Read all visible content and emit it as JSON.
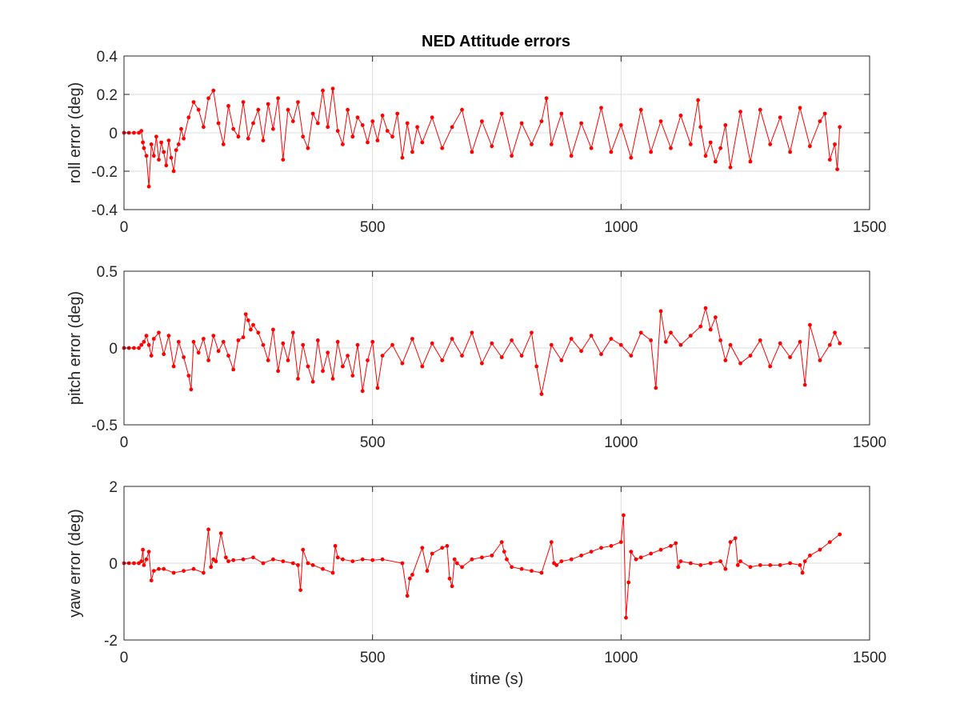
{
  "title": "NED Attitude errors",
  "colors": {
    "series": "#ff0000",
    "axis": "#262626",
    "grid": "#dcdcdc"
  },
  "chart_data": [
    {
      "type": "line",
      "title": "NED Attitude errors",
      "xlabel": "",
      "ylabel": "roll error (deg)",
      "xlim": [
        0,
        1500
      ],
      "ylim": [
        -0.4,
        0.4
      ],
      "xticks": [
        0,
        500,
        1000,
        1500
      ],
      "yticks": [
        -0.4,
        -0.2,
        0,
        0.2,
        0.4
      ],
      "xtick_labels": [
        "0",
        "500",
        "1000",
        "1500"
      ],
      "ytick_labels": [
        "-0.4",
        "-0.2",
        "0",
        "0.2",
        "0.4"
      ],
      "grid": true,
      "marker": "dot",
      "series": [
        {
          "x": [
            0,
            10,
            20,
            30,
            35,
            38,
            40,
            45,
            50,
            55,
            60,
            65,
            70,
            75,
            80,
            85,
            90,
            95,
            100,
            105,
            110,
            115,
            120,
            130,
            140,
            150,
            160,
            170,
            180,
            190,
            200,
            210,
            220,
            230,
            240,
            250,
            260,
            270,
            280,
            290,
            300,
            310,
            320,
            330,
            340,
            350,
            360,
            370,
            380,
            390,
            400,
            410,
            420,
            430,
            440,
            450,
            460,
            470,
            480,
            490,
            500,
            510,
            520,
            530,
            540,
            550,
            560,
            570,
            580,
            590,
            600,
            620,
            640,
            660,
            680,
            700,
            720,
            740,
            760,
            780,
            800,
            820,
            840,
            850,
            860,
            880,
            900,
            920,
            940,
            960,
            980,
            1000,
            1020,
            1040,
            1060,
            1080,
            1100,
            1120,
            1140,
            1155,
            1160,
            1170,
            1180,
            1190,
            1200,
            1210,
            1220,
            1240,
            1260,
            1280,
            1300,
            1320,
            1340,
            1360,
            1380,
            1400,
            1410,
            1420,
            1430,
            1435,
            1440
          ],
          "y": [
            0,
            0,
            0,
            0,
            0.01,
            -0.05,
            -0.08,
            -0.12,
            -0.28,
            -0.06,
            -0.12,
            -0.02,
            -0.14,
            -0.05,
            -0.1,
            -0.17,
            -0.04,
            -0.13,
            -0.2,
            -0.09,
            -0.06,
            0.02,
            -0.03,
            0.08,
            0.16,
            0.12,
            0.03,
            0.18,
            0.22,
            0.05,
            -0.06,
            0.14,
            0.02,
            -0.02,
            0.16,
            -0.03,
            0.05,
            0.12,
            -0.04,
            0.15,
            0.02,
            0.18,
            -0.14,
            0.12,
            0.06,
            0.16,
            -0.02,
            -0.08,
            0.1,
            0.05,
            0.22,
            0.03,
            0.23,
            0.01,
            -0.06,
            0.12,
            -0.02,
            0.08,
            0.04,
            -0.05,
            0.06,
            -0.04,
            0.09,
            0.01,
            -0.02,
            0.1,
            -0.13,
            0.05,
            -0.1,
            0.03,
            -0.05,
            0.08,
            -0.08,
            0.03,
            0.12,
            -0.1,
            0.06,
            -0.07,
            0.1,
            -0.12,
            0.05,
            -0.06,
            0.06,
            0.18,
            -0.06,
            0.1,
            -0.12,
            0.05,
            -0.08,
            0.13,
            -0.1,
            0.04,
            -0.13,
            0.12,
            -0.1,
            0.06,
            -0.08,
            0.09,
            -0.06,
            0.17,
            0.03,
            -0.12,
            -0.05,
            -0.15,
            -0.08,
            0.04,
            -0.18,
            0.11,
            -0.15,
            0.12,
            -0.06,
            0.08,
            -0.1,
            0.13,
            -0.07,
            0.06,
            0.1,
            -0.14,
            -0.06,
            -0.19,
            0.03
          ]
        }
      ]
    },
    {
      "type": "line",
      "xlabel": "",
      "ylabel": "pitch error (deg)",
      "xlim": [
        0,
        1500
      ],
      "ylim": [
        -0.5,
        0.5
      ],
      "xticks": [
        0,
        500,
        1000,
        1500
      ],
      "yticks": [
        -0.5,
        0,
        0.5
      ],
      "xtick_labels": [
        "0",
        "500",
        "1000",
        "1500"
      ],
      "ytick_labels": [
        "-0.5",
        "0",
        "0.5"
      ],
      "grid": true,
      "marker": "dot",
      "series": [
        {
          "x": [
            0,
            10,
            20,
            30,
            35,
            40,
            45,
            50,
            55,
            60,
            70,
            80,
            90,
            100,
            110,
            120,
            130,
            135,
            140,
            150,
            160,
            170,
            180,
            190,
            200,
            210,
            220,
            230,
            240,
            245,
            250,
            255,
            260,
            270,
            280,
            290,
            300,
            310,
            320,
            330,
            340,
            350,
            360,
            370,
            380,
            390,
            400,
            410,
            420,
            430,
            440,
            450,
            460,
            470,
            480,
            490,
            500,
            510,
            520,
            540,
            560,
            580,
            600,
            620,
            640,
            660,
            680,
            700,
            720,
            740,
            760,
            780,
            800,
            820,
            830,
            840,
            860,
            880,
            900,
            920,
            940,
            960,
            980,
            1000,
            1020,
            1040,
            1060,
            1070,
            1080,
            1090,
            1100,
            1120,
            1140,
            1160,
            1170,
            1180,
            1190,
            1200,
            1210,
            1220,
            1240,
            1260,
            1280,
            1300,
            1320,
            1340,
            1360,
            1370,
            1380,
            1400,
            1420,
            1430,
            1440
          ],
          "y": [
            0,
            0,
            0,
            0,
            0.02,
            0.04,
            0.08,
            0.02,
            -0.05,
            0.06,
            0.1,
            -0.04,
            0.08,
            -0.12,
            0.04,
            -0.06,
            -0.18,
            -0.27,
            0.04,
            -0.03,
            0.06,
            -0.08,
            0.08,
            -0.02,
            0.04,
            -0.05,
            -0.14,
            0.05,
            0.07,
            0.22,
            0.18,
            0.12,
            0.15,
            0.1,
            0.02,
            -0.08,
            0.12,
            -0.15,
            0.03,
            -0.08,
            0.1,
            -0.2,
            0.02,
            -0.12,
            -0.22,
            0.05,
            -0.15,
            -0.03,
            -0.2,
            0.04,
            -0.12,
            -0.05,
            -0.18,
            0.02,
            -0.28,
            -0.08,
            0.04,
            -0.26,
            -0.05,
            0.02,
            -0.1,
            0.06,
            -0.12,
            0.03,
            -0.08,
            0.06,
            -0.05,
            0.1,
            -0.1,
            0.03,
            -0.06,
            0.05,
            -0.05,
            0.1,
            -0.12,
            -0.3,
            0.02,
            -0.08,
            0.06,
            -0.02,
            0.08,
            -0.04,
            0.06,
            0.02,
            -0.05,
            0.1,
            0.05,
            -0.26,
            0.24,
            0.04,
            0.1,
            0.02,
            0.08,
            0.14,
            0.26,
            0.12,
            0.2,
            0.05,
            -0.08,
            0.02,
            -0.1,
            -0.05,
            0.05,
            -0.12,
            0.03,
            -0.06,
            0.04,
            -0.24,
            0.15,
            -0.08,
            0.02,
            0.1,
            0.03
          ]
        }
      ]
    },
    {
      "type": "line",
      "xlabel": "time (s)",
      "ylabel": "yaw error (deg)",
      "xlim": [
        0,
        1500
      ],
      "ylim": [
        -2,
        2
      ],
      "xticks": [
        0,
        500,
        1000,
        1500
      ],
      "yticks": [
        -2,
        0,
        2
      ],
      "xtick_labels": [
        "0",
        "500",
        "1000",
        "1500"
      ],
      "ytick_labels": [
        "-2",
        "0",
        "2"
      ],
      "grid": true,
      "marker": "dot",
      "series": [
        {
          "x": [
            0,
            10,
            20,
            30,
            35,
            38,
            40,
            45,
            50,
            55,
            60,
            70,
            80,
            100,
            120,
            140,
            160,
            170,
            175,
            180,
            185,
            195,
            205,
            210,
            220,
            240,
            260,
            280,
            300,
            320,
            340,
            350,
            355,
            360,
            370,
            380,
            400,
            420,
            425,
            430,
            440,
            460,
            480,
            500,
            520,
            560,
            570,
            575,
            580,
            600,
            610,
            620,
            640,
            650,
            655,
            660,
            665,
            670,
            680,
            700,
            720,
            740,
            760,
            765,
            770,
            780,
            800,
            820,
            840,
            860,
            865,
            870,
            880,
            900,
            920,
            940,
            960,
            980,
            1000,
            1005,
            1010,
            1015,
            1020,
            1030,
            1040,
            1060,
            1080,
            1100,
            1110,
            1115,
            1120,
            1140,
            1160,
            1180,
            1200,
            1210,
            1220,
            1230,
            1235,
            1240,
            1260,
            1280,
            1300,
            1320,
            1340,
            1360,
            1365,
            1370,
            1380,
            1400,
            1420,
            1440
          ],
          "y": [
            0,
            0,
            0,
            0,
            0.05,
            0.35,
            -0.05,
            0.1,
            0.3,
            -0.45,
            -0.2,
            -0.15,
            -0.15,
            -0.25,
            -0.2,
            -0.15,
            -0.25,
            0.88,
            -0.1,
            0.1,
            0.05,
            0.78,
            0.15,
            0.05,
            0.08,
            0.1,
            0.15,
            0.0,
            0.1,
            0.05,
            0.0,
            -0.05,
            -0.7,
            0.35,
            0.0,
            -0.05,
            -0.15,
            -0.25,
            0.45,
            0.15,
            0.1,
            0.05,
            0.1,
            0.08,
            0.1,
            0.0,
            -0.85,
            -0.4,
            -0.3,
            0.4,
            -0.2,
            0.25,
            0.4,
            0.45,
            -0.4,
            -0.6,
            0.1,
            0.0,
            -0.1,
            0.1,
            0.15,
            0.2,
            0.55,
            0.3,
            0.1,
            -0.1,
            -0.15,
            -0.2,
            -0.25,
            0.55,
            0.0,
            -0.05,
            0.05,
            0.1,
            0.2,
            0.3,
            0.4,
            0.45,
            0.55,
            1.25,
            -1.42,
            -0.5,
            0.3,
            0.1,
            0.15,
            0.25,
            0.35,
            0.45,
            0.52,
            -0.1,
            0.05,
            0.0,
            -0.05,
            0.0,
            0.05,
            -0.15,
            0.55,
            0.65,
            -0.05,
            0.05,
            -0.1,
            -0.05,
            -0.05,
            -0.05,
            0.0,
            -0.05,
            -0.25,
            0.05,
            0.2,
            0.35,
            0.55,
            0.75
          ]
        }
      ]
    }
  ]
}
